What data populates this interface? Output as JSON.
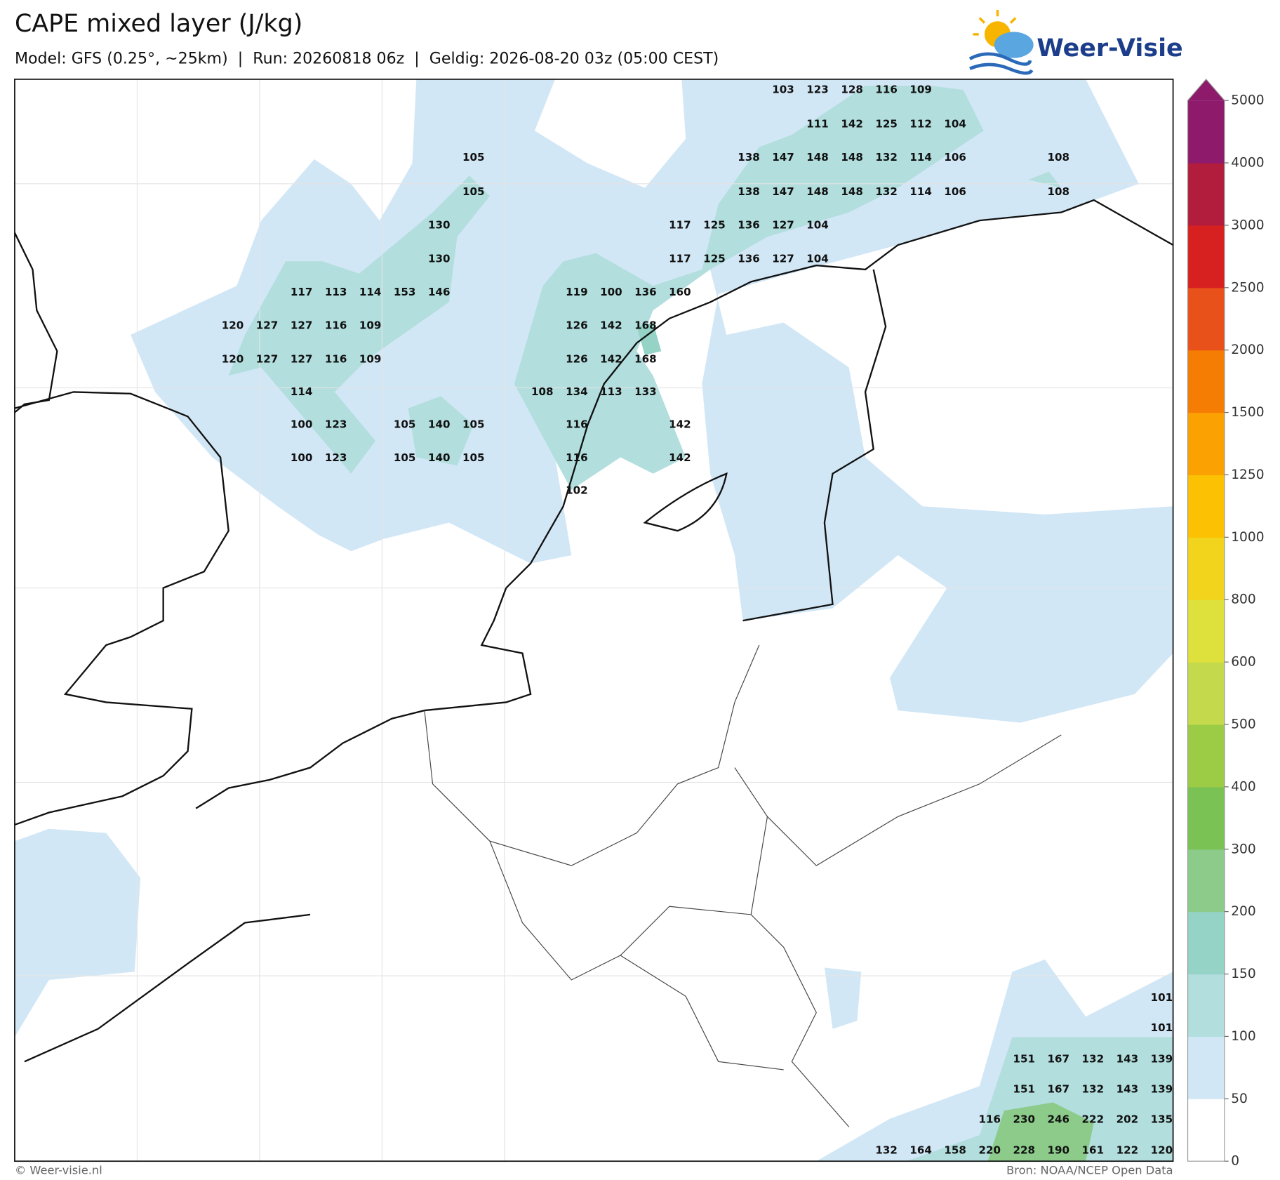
{
  "header": {
    "title": "CAPE mixed layer (J/kg)",
    "subtitle": "Model: GFS (0.25°, ~25km)  |  Run: 20260818 06z  |  Geldig: 2026-08-20 03z (05:00 CEST)",
    "logo": "Weer-Visie"
  },
  "footer": {
    "left": "© Weer-visie.nl",
    "right": "Bron: NOAA/NCEP Open Data"
  },
  "colorbar": {
    "ticks": [
      0,
      50,
      100,
      150,
      200,
      300,
      400,
      500,
      600,
      800,
      1000,
      1250,
      1500,
      2000,
      2500,
      3000,
      4000,
      5000
    ],
    "colors": [
      "#ffffff",
      "#d2e7f6",
      "#b2dede",
      "#94d3c6",
      "#8ccb8a",
      "#7ac254",
      "#9ccc46",
      "#c4da4c",
      "#dee13c",
      "#f2d41c",
      "#fbc102",
      "#fba202",
      "#f57d04",
      "#e9511a",
      "#d72121",
      "#b21d3d",
      "#8d1a6b"
    ]
  },
  "map": {
    "labels": [
      [
        103,
        123,
        128,
        116,
        109
      ],
      [
        111,
        142,
        125,
        112,
        104
      ],
      [
        105,
        138,
        147,
        148,
        148,
        132,
        114,
        106,
        108
      ],
      [
        105,
        138,
        147,
        148,
        148,
        132,
        114,
        106,
        108
      ],
      [
        130,
        117,
        125,
        136,
        127,
        104
      ],
      [
        130,
        117,
        125,
        136,
        127,
        104
      ],
      [
        117,
        113,
        114,
        153,
        146,
        119,
        100,
        136,
        160
      ],
      [
        120,
        127,
        127,
        116,
        109,
        126,
        142,
        168
      ],
      [
        120,
        127,
        127,
        116,
        109,
        126,
        142,
        168
      ],
      [
        114,
        108,
        134,
        113,
        133
      ],
      [
        100,
        123,
        105,
        140,
        105,
        116,
        142
      ],
      [
        100,
        123,
        105,
        140,
        105,
        116,
        142
      ],
      [
        102
      ],
      [
        101
      ],
      [
        101
      ],
      [
        151,
        167,
        132,
        143,
        139
      ],
      [
        151,
        167,
        132,
        143,
        139
      ],
      [
        116,
        230,
        246,
        222,
        202,
        135
      ],
      [
        132,
        164,
        158,
        220,
        228,
        190,
        161,
        122,
        120
      ]
    ]
  }
}
